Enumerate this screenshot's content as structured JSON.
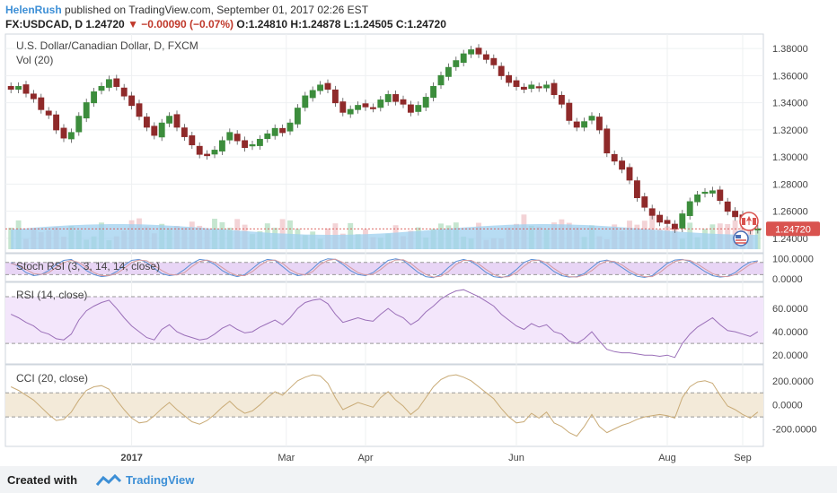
{
  "header": {
    "author": "HelenRush",
    "published": " published on TradingView.com, September 01, 2017 02:26 EST",
    "symbol_line": "FX:USDCAD, D  1.24720",
    "change": "▼ −0.00090 (−0.07%)",
    "ohlc": " O:1.24810 H:1.24878 L:1.24505 C:1.24720"
  },
  "footer": {
    "created_with": "Created with",
    "brand": "TradingView"
  },
  "colors": {
    "up": "#3c8d3c",
    "down": "#8f2a2a",
    "vol_ma": "#9fd0ef",
    "band": "#e8d5f5",
    "cci_band": "#f3ead9",
    "price_tag": "#d9534f"
  },
  "chart_data": [
    {
      "type": "candlestick",
      "title": "U.S. Dollar/Canadian Dollar, D, FXCM",
      "subtitle": "Vol (20)",
      "ylim": [
        1.232,
        1.388
      ],
      "yticks": [
        "1.38000",
        "1.36000",
        "1.34000",
        "1.32000",
        "1.30000",
        "1.28000",
        "1.26000",
        "1.24000"
      ],
      "last_price_label": "1.24720",
      "xticks": [
        "2017",
        "Mar",
        "Apr",
        "Jun",
        "Aug",
        "Sep"
      ],
      "close_path": [
        1.35,
        1.352,
        1.347,
        1.343,
        1.335,
        1.331,
        1.32,
        1.314,
        1.318,
        1.33,
        1.34,
        1.348,
        1.352,
        1.357,
        1.352,
        1.345,
        1.338,
        1.33,
        1.322,
        1.316,
        1.325,
        1.33,
        1.322,
        1.315,
        1.309,
        1.302,
        1.301,
        1.305,
        1.312,
        1.318,
        1.312,
        1.307,
        1.309,
        1.313,
        1.317,
        1.321,
        1.318,
        1.325,
        1.336,
        1.345,
        1.349,
        1.353,
        1.35,
        1.34,
        1.333,
        1.335,
        1.338,
        1.337,
        1.336,
        1.342,
        1.346,
        1.341,
        1.339,
        1.333,
        1.338,
        1.344,
        1.352,
        1.36,
        1.366,
        1.371,
        1.376,
        1.379,
        1.376,
        1.372,
        1.368,
        1.36,
        1.355,
        1.352,
        1.35,
        1.353,
        1.351,
        1.353,
        1.346,
        1.339,
        1.327,
        1.322,
        1.326,
        1.33,
        1.32,
        1.303,
        1.297,
        1.291,
        1.283,
        1.27,
        1.263,
        1.257,
        1.252,
        1.251,
        1.247,
        1.258,
        1.267,
        1.272,
        1.274,
        1.275,
        1.268,
        1.26,
        1.256,
        1.251,
        1.246,
        1.247
      ]
    },
    {
      "type": "line",
      "title": "Stoch RSI (3, 3, 14, 14, close)",
      "ylim": [
        -5,
        110
      ],
      "yticks": [
        "100.0000",
        "0.0000"
      ],
      "band": [
        20,
        80
      ],
      "k": [
        80,
        60,
        30,
        15,
        20,
        40,
        70,
        90,
        95,
        70,
        40,
        20,
        10,
        15,
        35,
        65,
        90,
        95,
        80,
        50,
        25,
        15,
        20,
        45,
        75,
        95,
        90,
        70,
        40,
        20,
        10,
        20,
        50,
        80,
        95,
        90,
        60,
        30,
        15,
        20,
        50,
        85,
        98,
        95,
        70,
        40,
        20,
        15,
        30,
        60,
        90,
        98,
        90,
        60,
        30,
        10,
        5,
        20,
        55,
        85,
        95,
        85,
        60,
        30,
        10,
        5,
        15,
        45,
        80,
        95,
        90,
        65,
        35,
        15,
        8,
        10,
        25,
        55,
        85,
        92,
        80,
        55,
        30,
        12,
        6,
        15,
        45,
        75,
        92,
        95,
        85,
        60,
        35,
        15,
        8,
        12,
        30,
        60,
        82,
        88
      ],
      "d": [
        75,
        65,
        45,
        25,
        20,
        30,
        55,
        80,
        90,
        80,
        55,
        30,
        15,
        15,
        25,
        50,
        80,
        92,
        88,
        65,
        40,
        20,
        18,
        30,
        60,
        85,
        92,
        80,
        55,
        30,
        15,
        15,
        35,
        65,
        88,
        92,
        75,
        45,
        25,
        18,
        35,
        70,
        90,
        96,
        80,
        55,
        30,
        18,
        22,
        45,
        75,
        92,
        93,
        75,
        45,
        20,
        8,
        12,
        35,
        70,
        90,
        90,
        72,
        45,
        20,
        8,
        10,
        30,
        62,
        88,
        92,
        78,
        50,
        25,
        10,
        8,
        18,
        40,
        70,
        88,
        85,
        68,
        42,
        22,
        10,
        10,
        30,
        60,
        85,
        93,
        90,
        72,
        48,
        25,
        12,
        10,
        20,
        45,
        70,
        85
      ]
    },
    {
      "type": "line",
      "title": "RSI (14, close)",
      "ylim": [
        14,
        80
      ],
      "yticks": [
        "60.0000",
        "40.0000",
        "20.0000"
      ],
      "band": [
        30,
        70
      ],
      "values": [
        55,
        52,
        48,
        45,
        40,
        38,
        34,
        33,
        38,
        50,
        58,
        62,
        65,
        67,
        60,
        52,
        45,
        40,
        35,
        33,
        42,
        46,
        40,
        37,
        35,
        33,
        34,
        38,
        43,
        46,
        42,
        39,
        40,
        44,
        47,
        50,
        46,
        52,
        60,
        65,
        67,
        68,
        64,
        55,
        48,
        50,
        52,
        50,
        49,
        55,
        60,
        55,
        52,
        46,
        50,
        57,
        62,
        68,
        72,
        75,
        76,
        73,
        70,
        66,
        62,
        55,
        50,
        45,
        42,
        47,
        44,
        46,
        40,
        38,
        32,
        30,
        34,
        40,
        32,
        25,
        23,
        22,
        22,
        21,
        20,
        20,
        19,
        20,
        18,
        30,
        38,
        44,
        48,
        52,
        46,
        41,
        40,
        38,
        36,
        40
      ]
    },
    {
      "type": "line",
      "title": "CCI (20, close)",
      "ylim": [
        -330,
        310
      ],
      "yticks": [
        "200.0000",
        "0.0000",
        "-200.0000"
      ],
      "band": [
        -100,
        100
      ],
      "values": [
        150,
        120,
        80,
        40,
        -20,
        -80,
        -130,
        -120,
        -60,
        40,
        120,
        150,
        160,
        130,
        40,
        -40,
        -110,
        -150,
        -140,
        -90,
        -30,
        20,
        -40,
        -90,
        -140,
        -160,
        -130,
        -80,
        -20,
        30,
        -30,
        -70,
        -50,
        0,
        60,
        110,
        80,
        140,
        200,
        230,
        250,
        240,
        180,
        60,
        -40,
        -10,
        20,
        0,
        -20,
        60,
        110,
        40,
        -10,
        -80,
        -30,
        60,
        150,
        210,
        240,
        250,
        230,
        200,
        150,
        100,
        50,
        -30,
        -100,
        -150,
        -140,
        -70,
        -110,
        -60,
        -150,
        -180,
        -230,
        -260,
        -180,
        -80,
        -180,
        -230,
        -200,
        -170,
        -150,
        -120,
        -100,
        -90,
        -80,
        -90,
        -110,
        60,
        150,
        190,
        200,
        180,
        80,
        -10,
        -40,
        -80,
        -110,
        -60
      ]
    }
  ]
}
